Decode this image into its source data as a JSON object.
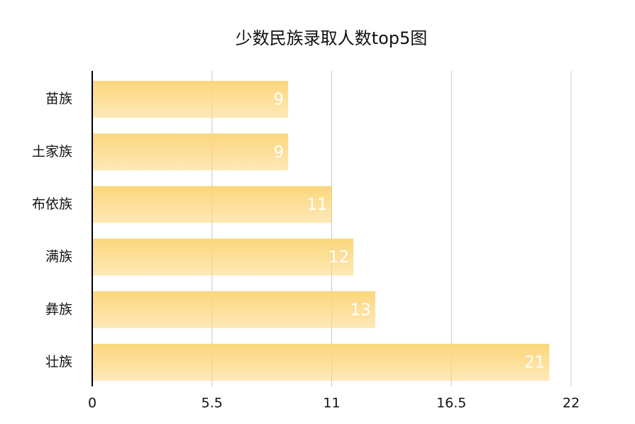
{
  "chart_data": {
    "type": "bar",
    "orientation": "horizontal",
    "title": "少数民族录取人数top5图",
    "categories": [
      "苗族",
      "土家族",
      "布依族",
      "满族",
      "彝族",
      "壮族"
    ],
    "values": [
      9,
      9,
      11,
      12,
      13,
      21
    ],
    "color": "#fcd67c",
    "xlim": [
      0,
      22
    ],
    "xticks": [
      0,
      5.5,
      11,
      16.5,
      22
    ],
    "grid": true
  }
}
